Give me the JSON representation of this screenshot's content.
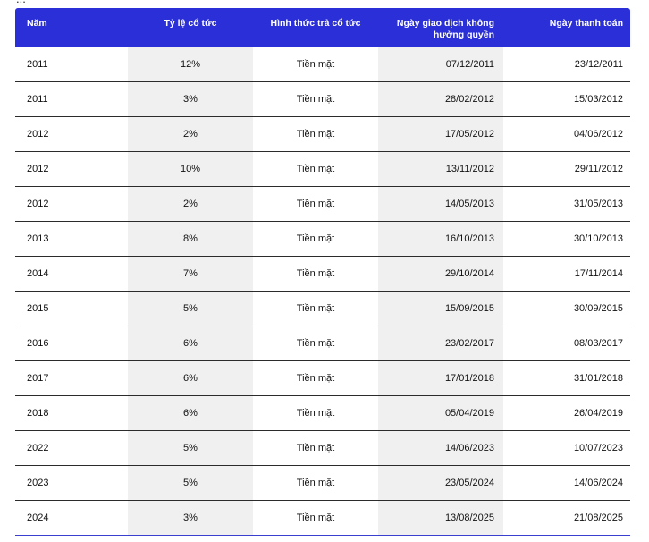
{
  "cut_text": "...",
  "table": {
    "headers": {
      "year": "Năm",
      "rate": "Tỷ lệ cổ tức",
      "method": "Hình thức trả cổ tức",
      "ex_date": "Ngày giao dịch không hưởng quyền",
      "pay_date": "Ngày thanh toán"
    },
    "rows": [
      {
        "year": "2011",
        "rate": "12%",
        "method": "Tiền mặt",
        "ex_date": "07/12/2011",
        "pay_date": "23/12/2011"
      },
      {
        "year": "2011",
        "rate": "3%",
        "method": "Tiền mặt",
        "ex_date": "28/02/2012",
        "pay_date": "15/03/2012"
      },
      {
        "year": "2012",
        "rate": "2%",
        "method": "Tiền mặt",
        "ex_date": "17/05/2012",
        "pay_date": "04/06/2012"
      },
      {
        "year": "2012",
        "rate": "10%",
        "method": "Tiền mặt",
        "ex_date": "13/11/2012",
        "pay_date": "29/11/2012"
      },
      {
        "year": "2012",
        "rate": "2%",
        "method": "Tiền mặt",
        "ex_date": "14/05/2013",
        "pay_date": "31/05/2013"
      },
      {
        "year": "2013",
        "rate": "8%",
        "method": "Tiền mặt",
        "ex_date": "16/10/2013",
        "pay_date": "30/10/2013"
      },
      {
        "year": "2014",
        "rate": "7%",
        "method": "Tiền mặt",
        "ex_date": "29/10/2014",
        "pay_date": "17/11/2014"
      },
      {
        "year": "2015",
        "rate": "5%",
        "method": "Tiền mặt",
        "ex_date": "15/09/2015",
        "pay_date": "30/09/2015"
      },
      {
        "year": "2016",
        "rate": "6%",
        "method": "Tiền mặt",
        "ex_date": "23/02/2017",
        "pay_date": "08/03/2017"
      },
      {
        "year": "2017",
        "rate": "6%",
        "method": "Tiền mặt",
        "ex_date": "17/01/2018",
        "pay_date": "31/01/2018"
      },
      {
        "year": "2018",
        "rate": "6%",
        "method": "Tiền mặt",
        "ex_date": "05/04/2019",
        "pay_date": "26/04/2019"
      },
      {
        "year": "2022",
        "rate": "5%",
        "method": "Tiền mặt",
        "ex_date": "14/06/2023",
        "pay_date": "10/07/2023"
      },
      {
        "year": "2023",
        "rate": "5%",
        "method": "Tiền mặt",
        "ex_date": "23/05/2024",
        "pay_date": "14/06/2024"
      },
      {
        "year": "2024",
        "rate": "3%",
        "method": "Tiền mặt",
        "ex_date": "13/08/2025",
        "pay_date": "21/08/2025"
      }
    ]
  },
  "colors": {
    "header_bg": "#2a2fd8",
    "shaded_column": "#f0f0f0"
  }
}
